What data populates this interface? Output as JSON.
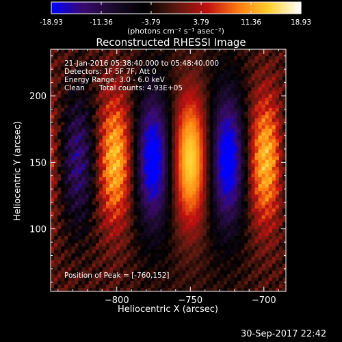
{
  "colorbar": {
    "ticks": [
      "-18.93",
      "-11.36",
      "-3.79",
      "3.79",
      "11.36",
      "18.93"
    ],
    "tick_values": [
      -18.93,
      -11.36,
      -3.79,
      3.79,
      11.36,
      18.93
    ],
    "unit_label": "(photons cm⁻² s⁻¹ asec⁻²)",
    "colormap": [
      "#0000ff",
      "#3a0a6e",
      "#1a0a2a",
      "#000000",
      "#5a1a10",
      "#c01010",
      "#ff7a10",
      "#ffd030",
      "#ffffff"
    ]
  },
  "title": "Reconstructed RHESSI Image",
  "info": {
    "time_range": "21-Jan-2016 05:38:40.000 to 05:48:40.000",
    "detectors": "Detectors: 1F 5F 7F, Att 0",
    "energy": "Energy Range: 3.0 - 6.0 keV",
    "algorithm": "Clean",
    "counts": "Total counts: 4.93E+05",
    "peak": "Position of Peak = [-760,152]"
  },
  "footer": {
    "timestamp": "30-Sep-2017 22:42"
  },
  "chart_data": {
    "type": "heatmap",
    "title": "Reconstructed RHESSI Image",
    "xlabel": "Heliocentric X (arcsec)",
    "ylabel": "Heliocentric Y (arcsec)",
    "xlim": [
      -845,
      -685
    ],
    "ylim": [
      53,
      235
    ],
    "x_ticks": [
      -800,
      -750,
      -700
    ],
    "x_tick_labels": [
      "−800",
      "−750",
      "−700"
    ],
    "y_ticks": [
      100,
      150,
      200
    ],
    "y_tick_labels": [
      "100",
      "150",
      "200"
    ],
    "value_range": [
      -18.93,
      18.93
    ],
    "peak": {
      "x": -760,
      "y": 152
    }
  }
}
